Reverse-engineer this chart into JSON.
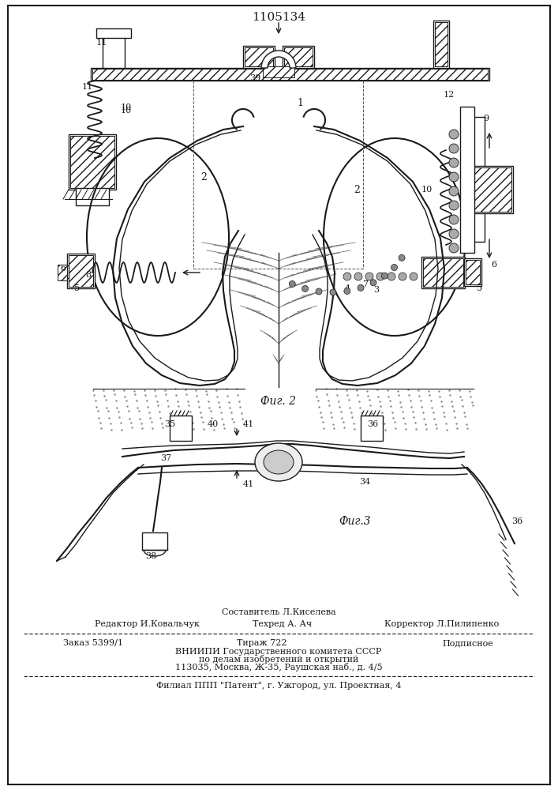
{
  "patent_number": "1105134",
  "fig2_caption": "Фиг. 2",
  "fig3_caption": "Фиг.3",
  "footer": {
    "sestavitel": "Составитель Л.Киселева",
    "redaktor": "Редактор И.Ковальчук",
    "tehred": "Техред А. Ач",
    "korrektor": "Корректор Л.Пилипенко",
    "zakaz": "Заказ 5399/1",
    "tirazh": "Тираж 722",
    "podpisnoe": "Подписное",
    "vniipи": "ВНИИПИ Государственного комитета СССР",
    "dela": "по делам изобретений и открытий",
    "address": "113035, Москва, Ж-35, Раушская наб., д. 4/5",
    "filial": "Филиал ППП \"Патент\", г. Ужгород, ул. Проектная, 4"
  }
}
